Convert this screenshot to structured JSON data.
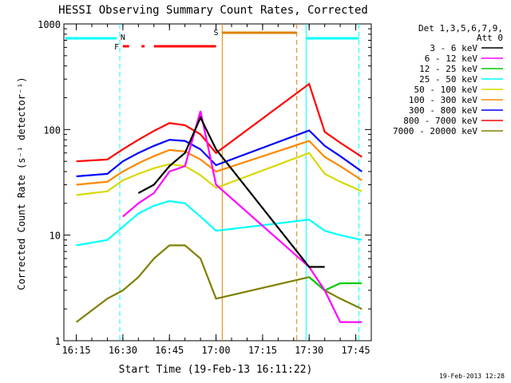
{
  "chart_data": {
    "type": "line",
    "title": "HESSI Observing Summary Count Rates, Corrected",
    "xlabel": "Start Time (19-Feb-13 16:11:22)",
    "ylabel": "Corrected Count Rate (s⁻¹ detector⁻¹)",
    "y_scale": "log",
    "ylim": [
      1,
      1000
    ],
    "xlim": [
      "16:11",
      "17:50"
    ],
    "x_ticks": [
      "16:15",
      "16:30",
      "16:45",
      "17:00",
      "17:15",
      "17:30",
      "17:45"
    ],
    "y_ticks": [
      "1",
      "10",
      "100",
      "1000"
    ],
    "footer": "19-Feb-2013 12:28",
    "legend": {
      "header_line1": "Det 1,3,5,6,7,9,",
      "header_line2": "Att 0",
      "placement": "right"
    },
    "annotations": {
      "N_label": "N",
      "F_label": "F",
      "S_label": "S"
    },
    "series": [
      {
        "name": "3 - 6 keV",
        "color": "#000000",
        "x": [
          "16:15",
          "16:25",
          "16:30",
          "16:35",
          "16:40",
          "16:45",
          "16:50",
          "16:55",
          "17:00",
          "17:30",
          "17:35",
          "17:40",
          "17:47"
        ],
        "y": [
          null,
          null,
          null,
          25,
          30,
          45,
          60,
          130,
          65,
          5,
          5,
          null,
          null
        ]
      },
      {
        "name": "6 - 12 keV",
        "color": "#ff00ff",
        "x": [
          "16:15",
          "16:25",
          "16:30",
          "16:35",
          "16:40",
          "16:45",
          "16:50",
          "16:55",
          "17:00",
          "17:30",
          "17:35",
          "17:40",
          "17:47"
        ],
        "y": [
          null,
          null,
          15,
          20,
          25,
          40,
          45,
          150,
          30,
          5,
          3,
          1.5,
          1.5
        ]
      },
      {
        "name": "12 - 25 keV",
        "color": "#00cc00",
        "x": [
          "16:15",
          "16:25",
          "16:30",
          "16:35",
          "16:40",
          "16:45",
          "16:50",
          "16:55",
          "17:00",
          "17:30",
          "17:35",
          "17:40",
          "17:47"
        ],
        "y": [
          null,
          null,
          null,
          null,
          null,
          null,
          null,
          null,
          null,
          4,
          3,
          3.5,
          3.5
        ]
      },
      {
        "name": "25 - 50 keV",
        "color": "#00ffff",
        "x": [
          "16:15",
          "16:25",
          "16:30",
          "16:35",
          "16:40",
          "16:45",
          "16:50",
          "16:55",
          "17:00",
          "17:30",
          "17:35",
          "17:40",
          "17:47"
        ],
        "y": [
          8,
          9,
          12,
          16,
          19,
          21,
          20,
          15,
          11,
          14,
          11,
          10,
          9
        ]
      },
      {
        "name": "50 - 100 keV",
        "color": "#d8d800",
        "x": [
          "16:15",
          "16:25",
          "16:30",
          "16:35",
          "16:40",
          "16:45",
          "16:50",
          "16:55",
          "17:00",
          "17:30",
          "17:35",
          "17:40",
          "17:47"
        ],
        "y": [
          24,
          26,
          33,
          38,
          43,
          47,
          45,
          37,
          28,
          60,
          38,
          32,
          26
        ]
      },
      {
        "name": "100 - 300 keV",
        "color": "#ff8800",
        "x": [
          "16:15",
          "16:25",
          "16:30",
          "16:35",
          "16:40",
          "16:45",
          "16:50",
          "16:55",
          "17:00",
          "17:30",
          "17:35",
          "17:40",
          "17:47"
        ],
        "y": [
          30,
          32,
          40,
          48,
          56,
          64,
          62,
          52,
          40,
          78,
          55,
          45,
          33
        ]
      },
      {
        "name": "300 - 800 keV",
        "color": "#0000ff",
        "x": [
          "16:15",
          "16:25",
          "16:30",
          "16:35",
          "16:40",
          "16:45",
          "16:50",
          "16:55",
          "17:00",
          "17:30",
          "17:35",
          "17:40",
          "17:47"
        ],
        "y": [
          36,
          38,
          50,
          60,
          70,
          80,
          78,
          65,
          46,
          98,
          70,
          56,
          40
        ]
      },
      {
        "name": "800 - 7000 keV",
        "color": "#ff0000",
        "x": [
          "16:15",
          "16:25",
          "16:30",
          "16:35",
          "16:40",
          "16:45",
          "16:50",
          "16:55",
          "17:00",
          "17:30",
          "17:35",
          "17:40",
          "17:47"
        ],
        "y": [
          50,
          52,
          65,
          80,
          97,
          115,
          110,
          90,
          60,
          270,
          95,
          75,
          55
        ]
      },
      {
        "name": "7000 - 20000 keV",
        "color": "#808000",
        "x": [
          "16:15",
          "16:25",
          "16:30",
          "16:35",
          "16:40",
          "16:45",
          "16:50",
          "16:55",
          "17:00",
          "17:30",
          "17:35",
          "17:40",
          "17:47"
        ],
        "y": [
          1.5,
          2.5,
          3,
          4,
          6,
          8,
          8,
          6,
          2.5,
          4,
          3,
          2.5,
          2
        ]
      }
    ]
  }
}
